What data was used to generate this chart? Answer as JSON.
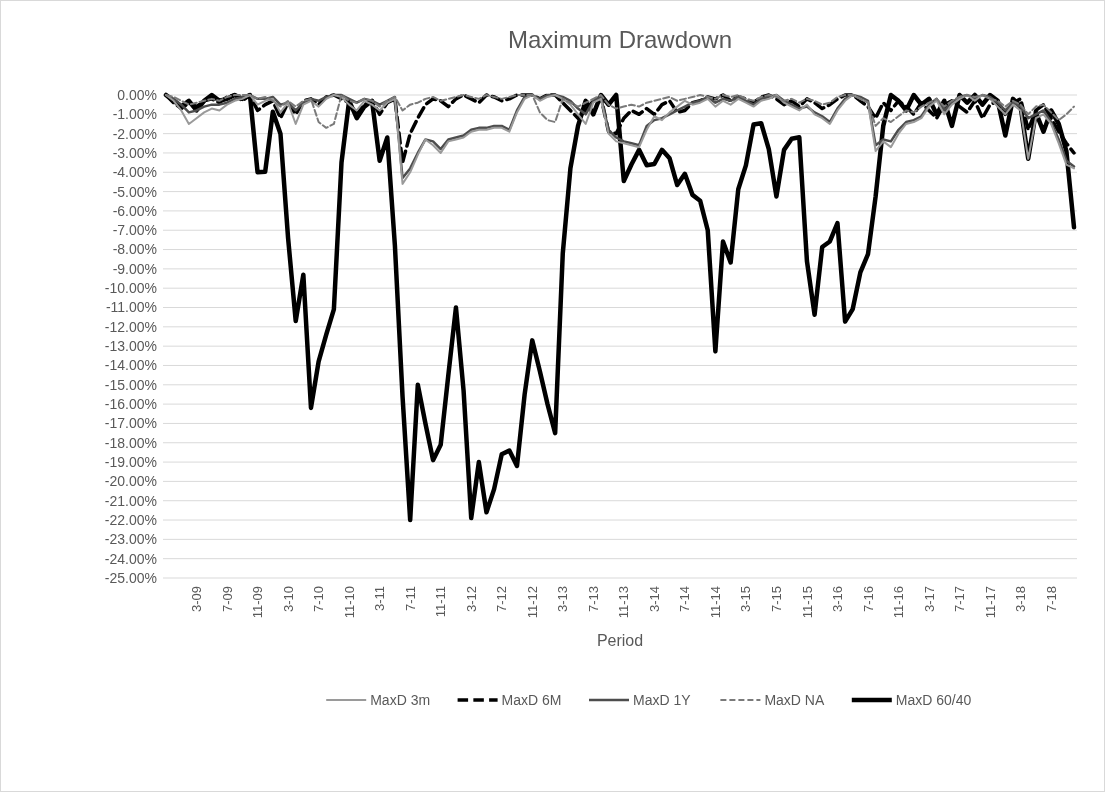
{
  "chart_data": {
    "type": "line",
    "title": "Maximum Drawdown",
    "xlabel": "Period",
    "categories": [
      null,
      null,
      null,
      null,
      "3-09",
      null,
      null,
      null,
      "7-09",
      null,
      null,
      null,
      "11-09",
      null,
      null,
      null,
      "3-10",
      null,
      null,
      null,
      "7-10",
      null,
      null,
      null,
      "11-10",
      null,
      null,
      null,
      "3-11",
      null,
      null,
      null,
      "7-11",
      null,
      null,
      null,
      "11-11",
      null,
      null,
      null,
      "3-12",
      null,
      null,
      null,
      "7-12",
      null,
      null,
      null,
      "11-12",
      null,
      null,
      null,
      "3-13",
      null,
      null,
      null,
      "7-13",
      null,
      null,
      null,
      "11-13",
      null,
      null,
      null,
      "3-14",
      null,
      null,
      null,
      "7-14",
      null,
      null,
      null,
      "11-14",
      null,
      null,
      null,
      "3-15",
      null,
      null,
      null,
      "7-15",
      null,
      null,
      null,
      "11-15",
      null,
      null,
      null,
      "3-16",
      null,
      null,
      null,
      "7-16",
      null,
      null,
      null,
      "11-16",
      null,
      null,
      null,
      "3-17",
      null,
      null,
      null,
      "7-17",
      null,
      null,
      null,
      "11-17",
      null,
      null,
      null,
      "3-18",
      null,
      null,
      null,
      "7-18",
      null,
      null,
      null
    ],
    "series": [
      {
        "name": "MaxD 3m",
        "color": "#9a9a9a",
        "line_style": "solid",
        "values": [
          0,
          -0.3,
          -0.8,
          -1.5,
          -1.2,
          -0.9,
          -0.7,
          -0.8,
          -0.5,
          -0.3,
          -0.2,
          0,
          -0.5,
          -0.3,
          -0.2,
          -0.9,
          -0.4,
          -1.5,
          -0.5,
          -0.3,
          -0.6,
          -0.2,
          0,
          -0.1,
          -0.5,
          -0.8,
          -0.3,
          -0.5,
          -0.8,
          -0.4,
          -0.2,
          -4.6,
          -4.0,
          -3.1,
          -2.3,
          -2.6,
          -3.0,
          -2.4,
          -2.3,
          -2.2,
          -1.9,
          -1.8,
          -1.8,
          -1.7,
          -1.7,
          -1.9,
          -0.9,
          -0.2,
          0,
          -0.3,
          -0.1,
          0,
          -0.2,
          -0.5,
          -1.0,
          -1.5,
          -0.4,
          -0.2,
          -2.0,
          -2.4,
          -2.5,
          -2.6,
          -2.7,
          -1.8,
          -1.1,
          -1.3,
          -0.9,
          -0.6,
          -0.3,
          -0.5,
          -0.4,
          -0.2,
          -0.6,
          -0.3,
          -0.5,
          -0.2,
          -0.4,
          -0.6,
          -0.3,
          -0.2,
          0,
          -0.4,
          -0.6,
          -0.8,
          -0.5,
          -1.0,
          -1.2,
          -1.5,
          -0.8,
          -0.3,
          0,
          -0.2,
          -0.4,
          -2.9,
          -2.4,
          -2.7,
          -2.0,
          -1.5,
          -1.4,
          -1.2,
          -0.6,
          -0.3,
          -1.0,
          -0.5,
          -0.2,
          0,
          -0.3,
          0,
          -0.2,
          -0.6,
          -1.0,
          -0.5,
          -0.8,
          -3.3,
          -1.2,
          -1.0,
          -1.5,
          -2.5,
          -3.6,
          -3.8
        ]
      },
      {
        "name": "MaxD 6M",
        "color": "#000000",
        "line_style": "dashed",
        "values": [
          0,
          -0.4,
          -0.7,
          -0.4,
          -0.6,
          -0.3,
          -0.2,
          -0.4,
          -0.1,
          0,
          -0.3,
          0,
          -0.8,
          -0.5,
          -0.3,
          -1.2,
          -0.4,
          -1.0,
          -0.3,
          -0.2,
          -0.5,
          -0.1,
          0,
          -0.2,
          -0.4,
          -1.0,
          -0.5,
          -0.3,
          -1.0,
          -0.4,
          -0.2,
          -3.5,
          -2.0,
          -1.2,
          -0.5,
          -0.2,
          -0.3,
          -0.6,
          -0.2,
          0,
          -0.2,
          -0.4,
          0,
          -0.1,
          -0.3,
          -0.2,
          0,
          0,
          0,
          -0.2,
          0,
          0,
          -0.4,
          -0.8,
          -1.2,
          -0.8,
          -0.3,
          -0.1,
          -1.9,
          -2.0,
          -1.2,
          -0.8,
          -1.0,
          -0.7,
          -1.0,
          -0.5,
          -0.3,
          -0.9,
          -0.8,
          -0.4,
          -0.3,
          -0.1,
          -0.2,
          0,
          -0.3,
          -0.1,
          -0.2,
          -0.4,
          -0.1,
          0,
          -0.2,
          -0.5,
          -0.3,
          -0.6,
          -0.2,
          -0.4,
          -0.7,
          -0.5,
          -0.2,
          0,
          0,
          -0.3,
          -0.6,
          -1.2,
          -0.4,
          -0.8,
          -0.3,
          -0.6,
          -1.0,
          -0.4,
          -0.8,
          -1.2,
          -0.5,
          -0.3,
          -0.6,
          -0.9,
          -0.3,
          -1.2,
          -0.5,
          -0.3,
          -1.0,
          -0.4,
          -0.2,
          -1.8,
          -0.8,
          -0.5,
          -1.2,
          -1.9,
          -2.5,
          -3.0
        ]
      },
      {
        "name": "MaxD 1Y",
        "color": "#4d4d4d",
        "line_style": "solid",
        "values": [
          0,
          -0.2,
          -0.5,
          -0.9,
          -0.8,
          -0.6,
          -0.5,
          -0.5,
          -0.4,
          -0.2,
          -0.1,
          0,
          -0.2,
          -0.2,
          -0.1,
          -0.5,
          -0.4,
          -0.8,
          -0.4,
          -0.2,
          -0.3,
          -0.1,
          0,
          0,
          -0.2,
          -0.4,
          -0.2,
          -0.3,
          -0.5,
          -0.3,
          -0.1,
          -4.3,
          -3.8,
          -3.0,
          -2.3,
          -2.4,
          -2.8,
          -2.3,
          -2.2,
          -2.1,
          -1.8,
          -1.7,
          -1.7,
          -1.6,
          -1.6,
          -1.8,
          -0.8,
          -0.1,
          0,
          -0.2,
          0,
          0,
          -0.1,
          -0.3,
          -0.7,
          -1.0,
          -0.3,
          -0.1,
          -1.8,
          -2.2,
          -2.4,
          -2.5,
          -2.6,
          -1.6,
          -1.3,
          -1.2,
          -1.0,
          -0.8,
          -0.6,
          -0.4,
          -0.3,
          -0.1,
          -0.4,
          -0.2,
          -0.3,
          -0.1,
          -0.3,
          -0.5,
          -0.2,
          -0.1,
          0,
          -0.3,
          -0.5,
          -0.7,
          -0.6,
          -0.9,
          -1.1,
          -1.4,
          -0.7,
          -0.2,
          0,
          -0.1,
          -0.3,
          -2.6,
          -2.3,
          -2.4,
          -1.8,
          -1.4,
          -1.3,
          -1.1,
          -0.5,
          -0.2,
          -0.8,
          -0.4,
          -0.1,
          0,
          -0.2,
          0,
          -0.1,
          -0.4,
          -0.8,
          -0.4,
          -0.6,
          -1.2,
          -1.0,
          -0.8,
          -1.4,
          -2.3,
          -3.4,
          -3.7
        ]
      },
      {
        "name": "MaxD NA",
        "color": "#7a7a7a",
        "line_style": "dashed",
        "values": [
          0,
          -0.1,
          -0.3,
          -0.5,
          -0.4,
          -0.3,
          -0.2,
          -0.3,
          -0.1,
          0,
          0,
          0,
          -0.2,
          -0.1,
          -0.3,
          -0.6,
          -0.3,
          -0.6,
          -0.3,
          -0.2,
          -1.4,
          -1.7,
          -1.5,
          0,
          -0.3,
          -0.4,
          -0.2,
          -0.3,
          -0.6,
          -0.3,
          -0.1,
          -0.8,
          -0.5,
          -0.4,
          -0.2,
          -0.1,
          -0.3,
          -0.2,
          -0.1,
          0,
          -0.1,
          -0.2,
          0,
          -0.1,
          -0.2,
          -0.1,
          0,
          0,
          0,
          -0.9,
          -1.3,
          -1.4,
          -0.2,
          -0.4,
          -0.6,
          -0.4,
          -0.2,
          0,
          -0.5,
          -0.7,
          -0.6,
          -0.5,
          -0.6,
          -0.4,
          -0.3,
          -0.2,
          -0.1,
          -0.3,
          -0.2,
          -0.1,
          0,
          -0.1,
          -0.2,
          0,
          -0.1,
          0,
          -0.2,
          -0.3,
          -0.1,
          0,
          -0.1,
          -0.3,
          -0.2,
          -0.4,
          -0.2,
          -0.3,
          -0.5,
          -0.4,
          -0.1,
          0,
          0,
          -0.2,
          -0.4,
          -1.6,
          -1.2,
          -1.4,
          -1.1,
          -0.8,
          -0.9,
          -0.6,
          -0.4,
          -0.2,
          -0.6,
          -0.3,
          -0.1,
          0,
          -0.1,
          0,
          -0.2,
          -0.3,
          -0.6,
          -0.3,
          -0.5,
          -1.0,
          -0.6,
          -0.5,
          -0.9,
          -1.3,
          -1.0,
          -0.6
        ]
      },
      {
        "name": "MaxD 60/40",
        "color": "#000000",
        "line_style": "solid",
        "values": [
          0,
          -0.3,
          -0.6,
          -0.3,
          -0.8,
          -0.3,
          0,
          -0.3,
          -0.2,
          0,
          -0.2,
          0,
          -4.0,
          -3.97,
          -0.87,
          -2.0,
          -7.4,
          -11.7,
          -9.3,
          -16.2,
          -13.8,
          -12.4,
          -11.1,
          -3.5,
          -0.3,
          -1.2,
          -0.6,
          -0.3,
          -3.4,
          -2.2,
          -7.8,
          -15.6,
          -22.0,
          -15.0,
          -17.0,
          -18.9,
          -18.1,
          -14.5,
          -11.0,
          -15.3,
          -21.9,
          -19.0,
          -21.6,
          -20.4,
          -18.6,
          -18.4,
          -19.2,
          -15.5,
          -12.7,
          -14.3,
          -16.0,
          -17.5,
          -8.2,
          -3.8,
          -1.6,
          -0.3,
          -1.0,
          0,
          -0.5,
          0,
          -4.45,
          -3.6,
          -2.84,
          -3.64,
          -3.57,
          -2.84,
          -3.28,
          -4.66,
          -4.08,
          -5.17,
          -5.47,
          -7.0,
          -13.27,
          -7.58,
          -8.67,
          -4.88,
          -3.64,
          -1.53,
          -1.46,
          -2.8,
          -5.25,
          -2.84,
          -2.26,
          -2.19,
          -8.6,
          -11.37,
          -7.87,
          -7.58,
          -6.63,
          -11.73,
          -11.08,
          -9.18,
          -8.24,
          -5.25,
          -1.6,
          0,
          -0.3,
          -0.8,
          0,
          -0.5,
          -0.2,
          -1.0,
          -0.3,
          -1.6,
          0,
          -0.4,
          0,
          -0.5,
          0,
          -0.3,
          -2.1,
          -0.2,
          -0.6,
          -3.3,
          -0.9,
          -1.9,
          -0.8,
          -1.5,
          -2.9,
          -6.85
        ]
      }
    ],
    "ylim": [
      -25,
      0
    ],
    "yticks": [
      {
        "value": 0,
        "label": "0.00%"
      },
      {
        "value": -1,
        "label": "-1.00%"
      },
      {
        "value": -2,
        "label": "-2.00%"
      },
      {
        "value": -3,
        "label": "-3.00%"
      },
      {
        "value": -4,
        "label": "-4.00%"
      },
      {
        "value": -5,
        "label": "-5.00%"
      },
      {
        "value": -6,
        "label": "-6.00%"
      },
      {
        "value": -7,
        "label": "-7.00%"
      },
      {
        "value": -8,
        "label": "-8.00%"
      },
      {
        "value": -9,
        "label": "-9.00%"
      },
      {
        "value": -10,
        "label": "-10.00%"
      },
      {
        "value": -11,
        "label": "-11.00%"
      },
      {
        "value": -12,
        "label": "-12.00%"
      },
      {
        "value": -13,
        "label": "-13.00%"
      },
      {
        "value": -14,
        "label": "-14.00%"
      },
      {
        "value": -15,
        "label": "-15.00%"
      },
      {
        "value": -16,
        "label": "-16.00%"
      },
      {
        "value": -17,
        "label": "-17.00%"
      },
      {
        "value": -18,
        "label": "-18.00%"
      },
      {
        "value": -19,
        "label": "-19.00%"
      },
      {
        "value": -20,
        "label": "-20.00%"
      },
      {
        "value": -21,
        "label": "-21.00%"
      },
      {
        "value": -22,
        "label": "-22.00%"
      },
      {
        "value": -23,
        "label": "-23.00%"
      },
      {
        "value": -24,
        "label": "-24.00%"
      },
      {
        "value": -25,
        "label": "-25.00%"
      }
    ],
    "grid": "y",
    "legend": "bottom",
    "marker": "none"
  }
}
